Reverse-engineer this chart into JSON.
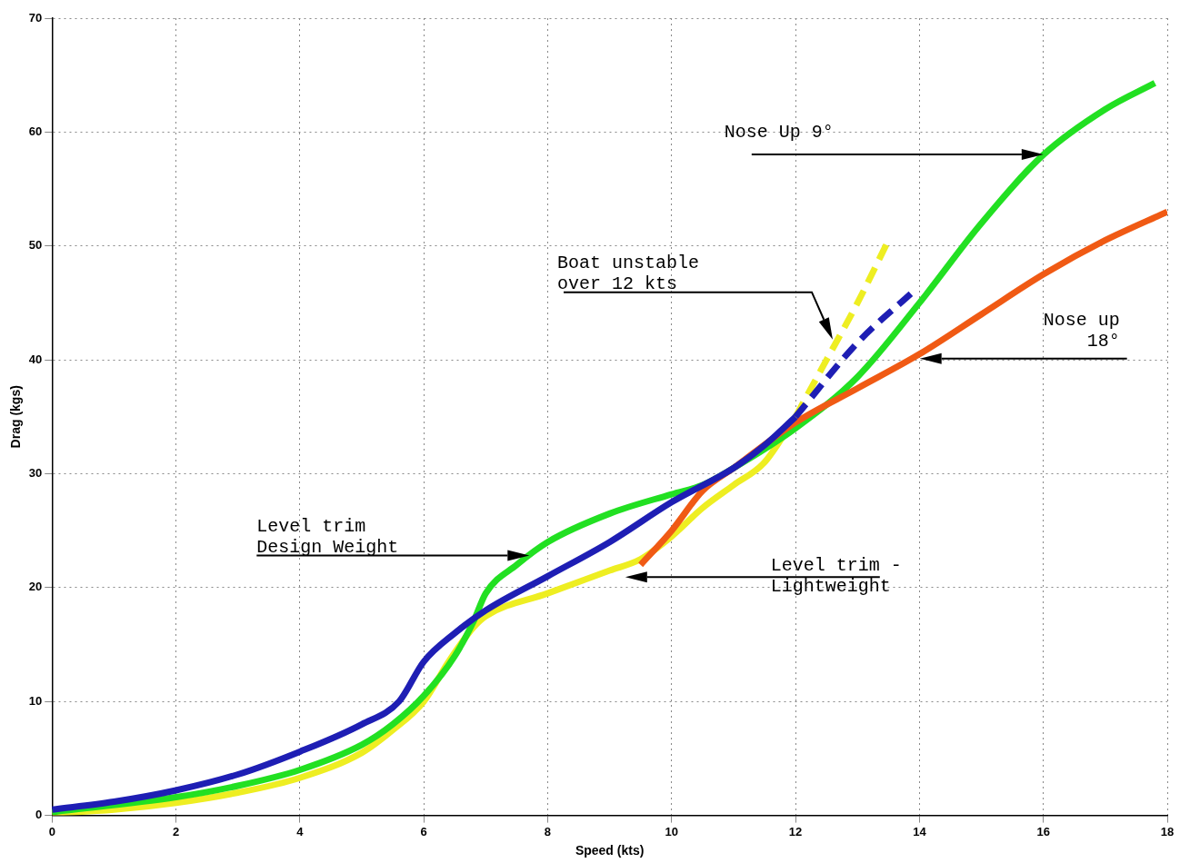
{
  "chart_data": {
    "type": "line",
    "xlabel": "Speed (kts)",
    "ylabel": "Drag (kgs)",
    "xlim": [
      0,
      18
    ],
    "ylim": [
      0,
      70
    ],
    "xticks": [
      0,
      2,
      4,
      6,
      8,
      10,
      12,
      14,
      16,
      18
    ],
    "yticks": [
      0,
      10,
      20,
      30,
      40,
      50,
      60,
      70
    ],
    "grid": true,
    "legend": false,
    "marker": "none",
    "line_style": "solid",
    "series": [
      {
        "color": "#1e1eb4",
        "x": [
          0,
          1,
          2,
          3,
          4,
          5,
          5.6,
          6,
          6.5,
          7,
          8,
          9,
          10,
          11,
          11.5,
          12
        ],
        "values": [
          0.5,
          1.2,
          2.2,
          3.6,
          5.6,
          8,
          10,
          13.5,
          16,
          18,
          21,
          24,
          27.5,
          30.5,
          32.5,
          35
        ]
      },
      {
        "color": "#1e1eb4",
        "line_style": "dashed",
        "x": [
          12,
          13,
          13.9
        ],
        "values": [
          35,
          41.5,
          46
        ]
      },
      {
        "color": "#f05a14",
        "x": [
          9.5,
          10,
          10.5,
          11,
          12,
          13,
          14,
          15,
          16,
          17,
          18
        ],
        "values": [
          22,
          25,
          28.5,
          30.5,
          34.5,
          37.5,
          40.5,
          44,
          47.5,
          50.5,
          53
        ]
      },
      {
        "color": "#22e022",
        "x": [
          0,
          2,
          3,
          4,
          5,
          5.5,
          6,
          6.5,
          6.8,
          7,
          7.5,
          8,
          9,
          10,
          10.5,
          11,
          12,
          13,
          14,
          15,
          16,
          17,
          17.8
        ],
        "values": [
          0.3,
          1.6,
          2.6,
          4,
          6.2,
          8,
          10.5,
          14,
          17,
          19.5,
          22,
          24,
          26.5,
          28.2,
          29,
          30.5,
          34,
          38.5,
          45,
          52,
          58,
          62,
          64.3
        ]
      },
      {
        "color": "#eeee22",
        "x": [
          0,
          1,
          2,
          3,
          4,
          5,
          5.5,
          6,
          6.4,
          6.8,
          7,
          8,
          9,
          9.5,
          10,
          10.5,
          11,
          11.5,
          12
        ],
        "values": [
          0.2,
          0.5,
          1.1,
          2,
          3.3,
          5.5,
          7.5,
          10,
          13.5,
          16.5,
          17.5,
          19.5,
          21.5,
          22.5,
          24.5,
          27,
          29,
          31,
          35
        ]
      },
      {
        "color": "#eeee22",
        "line_style": "dashed",
        "x": [
          12,
          12.5,
          13,
          13.5
        ],
        "values": [
          35,
          40,
          45,
          50.5
        ]
      }
    ],
    "annotations": [
      "Nose Up 9°",
      "Boat unstable over 12 kts",
      "Nose up 18°",
      "Level trim Design Weight",
      "Level trim - Lightweight"
    ]
  }
}
